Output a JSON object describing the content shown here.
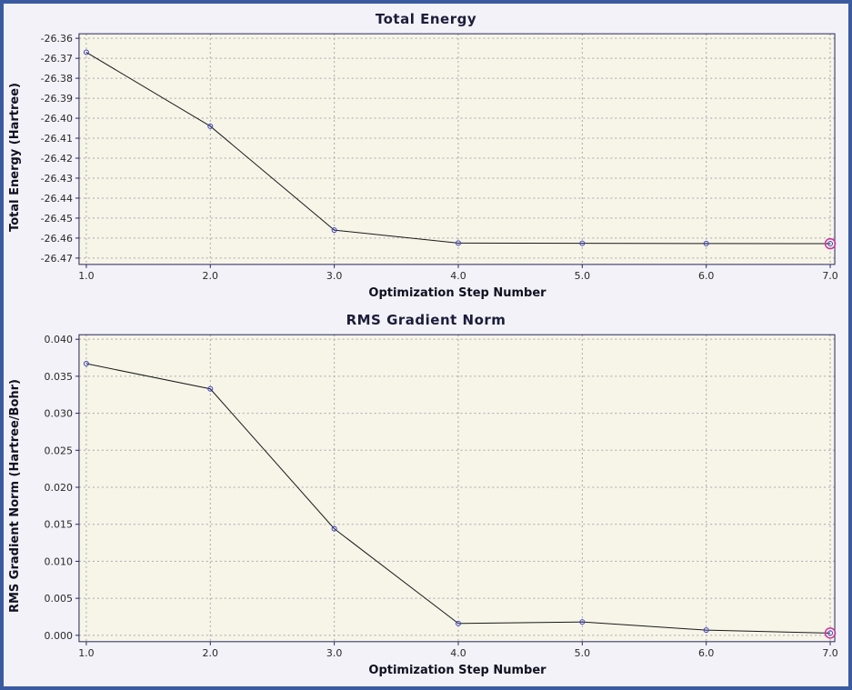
{
  "window": {
    "background": "#f2f2f8",
    "frame_color": "#3a5ba0"
  },
  "chart_data": [
    {
      "type": "line",
      "title": "Total Energy",
      "xlabel": "Optimization Step Number",
      "ylabel": "Total Energy (Hartree)",
      "x": [
        1.0,
        2.0,
        3.0,
        4.0,
        5.0,
        6.0,
        7.0
      ],
      "values": [
        -26.367,
        -26.404,
        -26.456,
        -26.4625,
        -26.4626,
        -26.4627,
        -26.4628
      ],
      "xlim": [
        1.0,
        7.0
      ],
      "ylim": [
        -26.47,
        -26.36
      ],
      "xtick_values": [
        1.0,
        2.0,
        3.0,
        4.0,
        5.0,
        6.0,
        7.0
      ],
      "xtick_labels": [
        "1.0",
        "2.0",
        "3.0",
        "4.0",
        "5.0",
        "6.0",
        "7.0"
      ],
      "ytick_values": [
        -26.36,
        -26.37,
        -26.38,
        -26.39,
        -26.4,
        -26.41,
        -26.42,
        -26.43,
        -26.44,
        -26.45,
        -26.46,
        -26.47
      ],
      "ytick_labels": [
        "-26.36",
        "-26.37",
        "-26.38",
        "-26.39",
        "-26.40",
        "-26.41",
        "-26.42",
        "-26.43",
        "-26.44",
        "-26.45",
        "-26.46",
        "-26.47"
      ],
      "grid": true,
      "legend": "none",
      "highlight_last": true,
      "style": {
        "plot_bg": "#f6f5e8",
        "grid_color": "#a8a8a8",
        "border_color": "#26265e",
        "line_color": "#1a1a1a",
        "marker_color": "#3c3cc8",
        "highlight_color": "#cc3399",
        "tick_color": "#2a2a2a",
        "title_color": "#1c1c3a"
      }
    },
    {
      "type": "line",
      "title": "RMS Gradient Norm",
      "xlabel": "Optimization Step Number",
      "ylabel": "RMS Gradient Norm (Hartree/Bohr)",
      "x": [
        1.0,
        2.0,
        3.0,
        4.0,
        5.0,
        6.0,
        7.0
      ],
      "values": [
        0.0367,
        0.0333,
        0.0144,
        0.0016,
        0.0018,
        0.0007,
        0.0003
      ],
      "xlim": [
        1.0,
        7.0
      ],
      "ylim": [
        0.0,
        0.04
      ],
      "xtick_values": [
        1.0,
        2.0,
        3.0,
        4.0,
        5.0,
        6.0,
        7.0
      ],
      "xtick_labels": [
        "1.0",
        "2.0",
        "3.0",
        "4.0",
        "5.0",
        "6.0",
        "7.0"
      ],
      "ytick_values": [
        0.0,
        0.005,
        0.01,
        0.015,
        0.02,
        0.025,
        0.03,
        0.035,
        0.04
      ],
      "ytick_labels": [
        "0.000",
        "0.005",
        "0.010",
        "0.015",
        "0.020",
        "0.025",
        "0.030",
        "0.035",
        "0.040"
      ],
      "grid": true,
      "legend": "none",
      "highlight_last": true,
      "style": {
        "plot_bg": "#f6f5e8",
        "grid_color": "#a8a8a8",
        "border_color": "#26265e",
        "line_color": "#1a1a1a",
        "marker_color": "#3c3cc8",
        "highlight_color": "#cc3399",
        "tick_color": "#2a2a2a",
        "title_color": "#1c1c3a"
      }
    }
  ]
}
